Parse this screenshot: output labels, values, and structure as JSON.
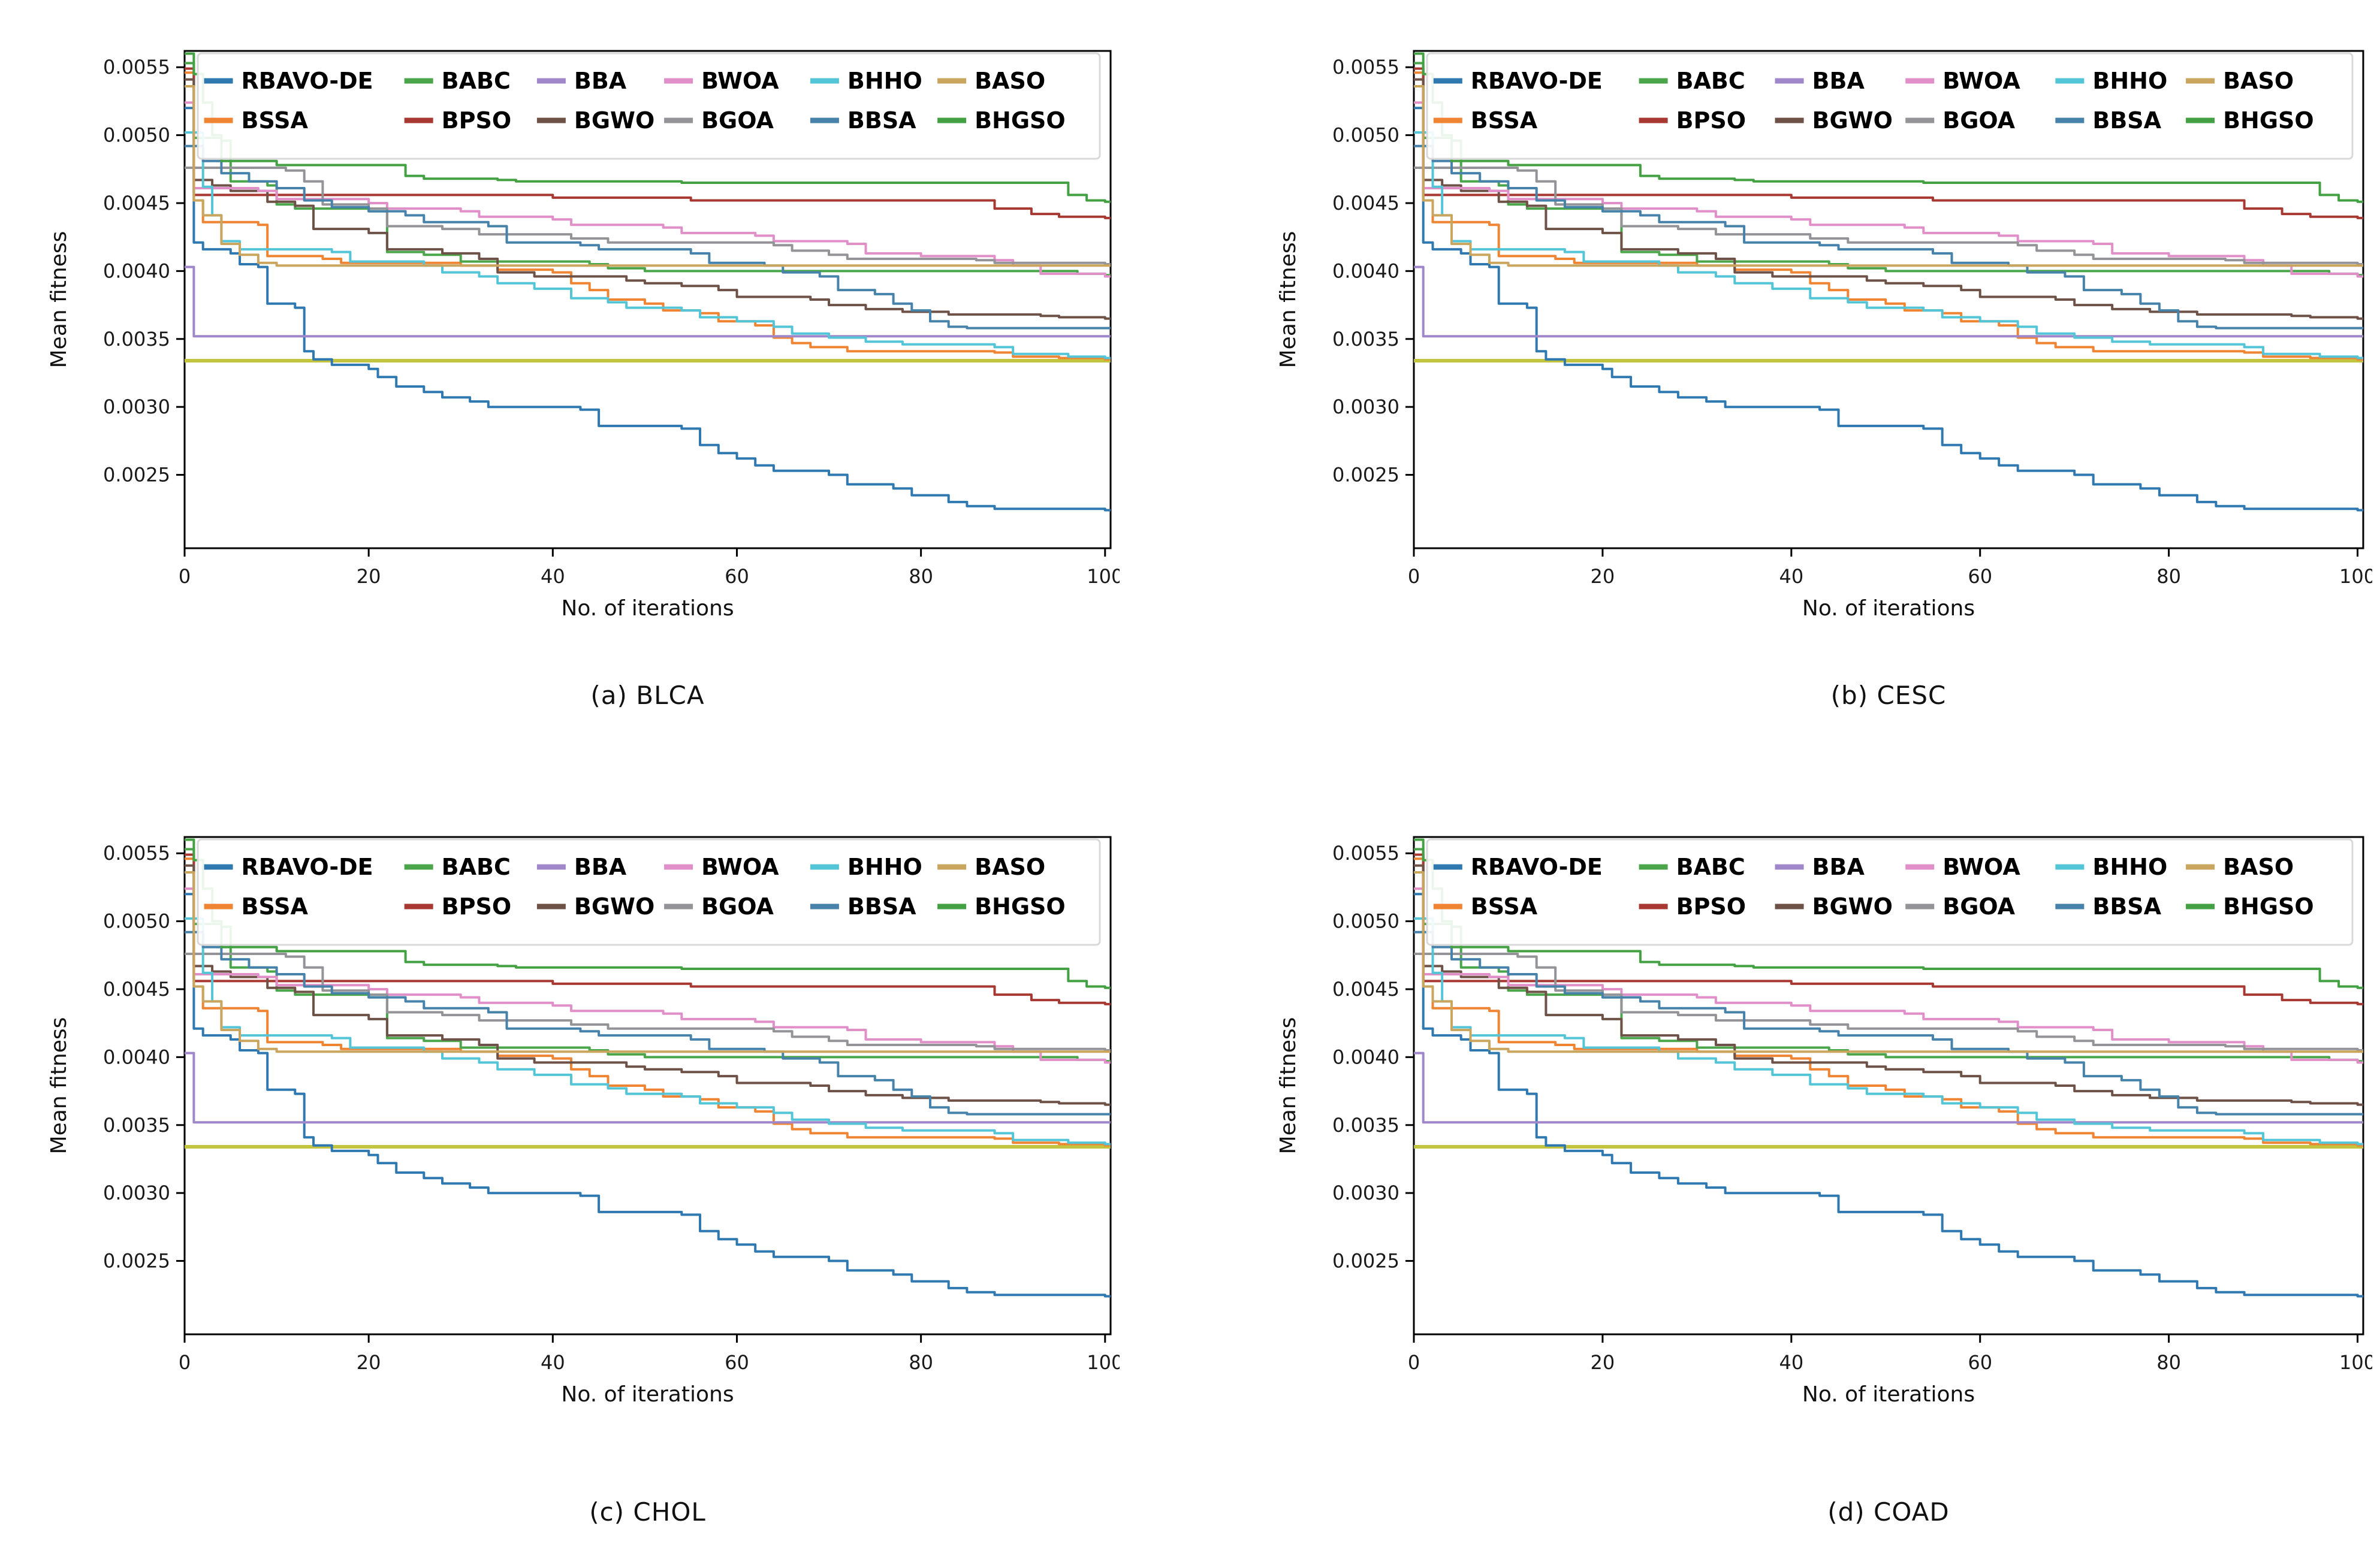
{
  "figure": {
    "background": "#ffffff",
    "panels": [
      {
        "id": "a",
        "caption": "(a) BLCA"
      },
      {
        "id": "b",
        "caption": "(b) CESC"
      },
      {
        "id": "c",
        "caption": "(c) CHOL"
      },
      {
        "id": "d",
        "caption": "(d) COAD"
      }
    ]
  },
  "chart_data": {
    "type": "line",
    "title": "",
    "xlabel": "No. of iterations",
    "ylabel": "Mean fitness",
    "xlim": [
      0,
      100.6
    ],
    "ylim": [
      0.00196,
      0.00562
    ],
    "x_ticks": [
      0,
      20,
      40,
      60,
      80,
      100
    ],
    "y_ticks": [
      0.0025,
      0.003,
      0.0035,
      0.004,
      0.0045,
      0.005,
      0.0055
    ],
    "grid": false,
    "legend_position": "upper center inside plot, 6 columns x 2 rows",
    "legend_columns": [
      [
        "RBAVO-DE",
        "BSSA"
      ],
      [
        "BABC",
        "BPSO"
      ],
      [
        "BBA",
        "BGWO"
      ],
      [
        "BWOA",
        "BGOA"
      ],
      [
        "BHHO",
        "BBSA"
      ],
      [
        "BASO",
        "BHGSO"
      ]
    ],
    "panels": [
      "(a) BLCA",
      "(b) CESC",
      "(c) CHOL",
      "(d) COAD"
    ],
    "note": "All four panels show visually identical convergence curves of the same 12 algorithms; an unlabeled olive horizontal reference line sits at y=0.00334.",
    "reference_line": {
      "name": "optimum-reference",
      "value": 0.00334,
      "color": "#c3c43e"
    },
    "series": [
      {
        "name": "RBAVO-DE",
        "color": "#2f78b0",
        "points": [
          [
            0,
            0.0052
          ],
          [
            1,
            0.00421
          ],
          [
            2,
            0.00416
          ],
          [
            5,
            0.00413
          ],
          [
            6,
            0.00405
          ],
          [
            8,
            0.00403
          ],
          [
            9,
            0.00376
          ],
          [
            12,
            0.00373
          ],
          [
            13,
            0.00341
          ],
          [
            14,
            0.00335
          ],
          [
            16,
            0.00331
          ],
          [
            20,
            0.00328
          ],
          [
            21,
            0.00322
          ],
          [
            23,
            0.00315
          ],
          [
            26,
            0.00311
          ],
          [
            28,
            0.00307
          ],
          [
            31,
            0.00304
          ],
          [
            33,
            0.003
          ],
          [
            43,
            0.00298
          ],
          [
            45,
            0.00286
          ],
          [
            54,
            0.00284
          ],
          [
            56,
            0.00272
          ],
          [
            58,
            0.00266
          ],
          [
            60,
            0.00262
          ],
          [
            62,
            0.00257
          ],
          [
            64,
            0.00253
          ],
          [
            70,
            0.0025
          ],
          [
            72,
            0.00243
          ],
          [
            77,
            0.0024
          ],
          [
            79,
            0.00235
          ],
          [
            83,
            0.0023
          ],
          [
            85,
            0.00227
          ],
          [
            88,
            0.00225
          ],
          [
            100,
            0.00224
          ]
        ]
      },
      {
        "name": "BSSA",
        "color": "#ef8433",
        "points": [
          [
            0,
            0.00546
          ],
          [
            1,
            0.00452
          ],
          [
            2,
            0.00436
          ],
          [
            8,
            0.00434
          ],
          [
            9,
            0.00411
          ],
          [
            15,
            0.00409
          ],
          [
            17,
            0.00406
          ],
          [
            30,
            0.00404
          ],
          [
            34,
            0.00401
          ],
          [
            40,
            0.00399
          ],
          [
            42,
            0.00391
          ],
          [
            44,
            0.00386
          ],
          [
            46,
            0.00379
          ],
          [
            50,
            0.00376
          ],
          [
            52,
            0.00371
          ],
          [
            56,
            0.00369
          ],
          [
            58,
            0.00363
          ],
          [
            62,
            0.0036
          ],
          [
            64,
            0.00351
          ],
          [
            66,
            0.00347
          ],
          [
            68,
            0.00344
          ],
          [
            72,
            0.00341
          ],
          [
            88,
            0.0034
          ],
          [
            90,
            0.00337
          ],
          [
            95,
            0.00336
          ],
          [
            100,
            0.00335
          ]
        ]
      },
      {
        "name": "BABC",
        "color": "#4ba64b",
        "points": [
          [
            0,
            0.00553
          ],
          [
            1,
            0.00498
          ],
          [
            4,
            0.00496
          ],
          [
            5,
            0.00466
          ],
          [
            9,
            0.00463
          ],
          [
            10,
            0.00449
          ],
          [
            12,
            0.00446
          ],
          [
            20,
            0.00444
          ],
          [
            22,
            0.00414
          ],
          [
            26,
            0.00412
          ],
          [
            30,
            0.00407
          ],
          [
            44,
            0.00405
          ],
          [
            46,
            0.00402
          ],
          [
            50,
            0.004
          ],
          [
            96,
            0.004
          ],
          [
            97,
            0.00398
          ],
          [
            100,
            0.00397
          ]
        ]
      },
      {
        "name": "BPSO",
        "color": "#a83832",
        "points": [
          [
            0,
            0.00549
          ],
          [
            1,
            0.00456
          ],
          [
            40,
            0.00454
          ],
          [
            55,
            0.00452
          ],
          [
            86,
            0.00452
          ],
          [
            88,
            0.00446
          ],
          [
            92,
            0.00442
          ],
          [
            95,
            0.0044
          ],
          [
            100,
            0.00439
          ]
        ]
      },
      {
        "name": "BBA",
        "color": "#a087c9",
        "points": [
          [
            0,
            0.00403
          ],
          [
            1,
            0.00352
          ],
          [
            100,
            0.00352
          ]
        ]
      },
      {
        "name": "BGWO",
        "color": "#6f5247",
        "points": [
          [
            0,
            0.00541
          ],
          [
            1,
            0.00467
          ],
          [
            3,
            0.00463
          ],
          [
            5,
            0.00459
          ],
          [
            9,
            0.00451
          ],
          [
            12,
            0.00448
          ],
          [
            14,
            0.00431
          ],
          [
            20,
            0.00428
          ],
          [
            22,
            0.00416
          ],
          [
            28,
            0.00413
          ],
          [
            32,
            0.00409
          ],
          [
            34,
            0.00399
          ],
          [
            38,
            0.00396
          ],
          [
            48,
            0.00393
          ],
          [
            50,
            0.00391
          ],
          [
            54,
            0.00389
          ],
          [
            58,
            0.00386
          ],
          [
            60,
            0.00381
          ],
          [
            68,
            0.00379
          ],
          [
            70,
            0.00375
          ],
          [
            74,
            0.00372
          ],
          [
            78,
            0.0037
          ],
          [
            83,
            0.00368
          ],
          [
            93,
            0.00367
          ],
          [
            95,
            0.00366
          ],
          [
            100,
            0.00365
          ]
        ]
      },
      {
        "name": "BWOA",
        "color": "#e08fc9",
        "points": [
          [
            0,
            0.00524
          ],
          [
            1,
            0.00461
          ],
          [
            8,
            0.00459
          ],
          [
            10,
            0.00453
          ],
          [
            20,
            0.0045
          ],
          [
            22,
            0.00446
          ],
          [
            30,
            0.00444
          ],
          [
            32,
            0.0044
          ],
          [
            40,
            0.00438
          ],
          [
            42,
            0.00434
          ],
          [
            52,
            0.00432
          ],
          [
            54,
            0.00428
          ],
          [
            62,
            0.00426
          ],
          [
            64,
            0.00422
          ],
          [
            72,
            0.0042
          ],
          [
            74,
            0.00413
          ],
          [
            80,
            0.00411
          ],
          [
            88,
            0.00408
          ],
          [
            90,
            0.00404
          ],
          [
            93,
            0.00398
          ],
          [
            100,
            0.00396
          ]
        ]
      },
      {
        "name": "BGOA",
        "color": "#939398",
        "points": [
          [
            0,
            0.00476
          ],
          [
            11,
            0.00474
          ],
          [
            13,
            0.00466
          ],
          [
            15,
            0.00449
          ],
          [
            20,
            0.00446
          ],
          [
            22,
            0.00433
          ],
          [
            28,
            0.00431
          ],
          [
            32,
            0.00427
          ],
          [
            42,
            0.00424
          ],
          [
            46,
            0.00421
          ],
          [
            64,
            0.00419
          ],
          [
            66,
            0.00415
          ],
          [
            70,
            0.00412
          ],
          [
            72,
            0.00409
          ],
          [
            86,
            0.00408
          ],
          [
            88,
            0.00406
          ],
          [
            100,
            0.00405
          ]
        ]
      },
      {
        "name": "BHHO",
        "color": "#53c5d6",
        "points": [
          [
            0,
            0.00502
          ],
          [
            2,
            0.00462
          ],
          [
            3,
            0.00441
          ],
          [
            4,
            0.00422
          ],
          [
            6,
            0.00416
          ],
          [
            16,
            0.00414
          ],
          [
            18,
            0.00407
          ],
          [
            26,
            0.00404
          ],
          [
            28,
            0.00399
          ],
          [
            32,
            0.00396
          ],
          [
            34,
            0.00391
          ],
          [
            38,
            0.00387
          ],
          [
            42,
            0.0038
          ],
          [
            46,
            0.00377
          ],
          [
            48,
            0.00373
          ],
          [
            54,
            0.00371
          ],
          [
            56,
            0.00366
          ],
          [
            60,
            0.00363
          ],
          [
            64,
            0.00359
          ],
          [
            66,
            0.00354
          ],
          [
            70,
            0.00351
          ],
          [
            74,
            0.00348
          ],
          [
            78,
            0.00346
          ],
          [
            88,
            0.00344
          ],
          [
            90,
            0.00339
          ],
          [
            96,
            0.00337
          ],
          [
            100,
            0.00336
          ]
        ]
      },
      {
        "name": "BBSA",
        "color": "#4682a9",
        "points": [
          [
            0,
            0.00492
          ],
          [
            2,
            0.00481
          ],
          [
            4,
            0.00472
          ],
          [
            7,
            0.00466
          ],
          [
            10,
            0.00461
          ],
          [
            13,
            0.00452
          ],
          [
            16,
            0.00447
          ],
          [
            20,
            0.00444
          ],
          [
            24,
            0.00441
          ],
          [
            26,
            0.00436
          ],
          [
            33,
            0.00433
          ],
          [
            35,
            0.00421
          ],
          [
            43,
            0.00419
          ],
          [
            45,
            0.00416
          ],
          [
            55,
            0.00413
          ],
          [
            57,
            0.00406
          ],
          [
            63,
            0.00404
          ],
          [
            65,
            0.00399
          ],
          [
            69,
            0.00396
          ],
          [
            71,
            0.00386
          ],
          [
            75,
            0.00383
          ],
          [
            77,
            0.00376
          ],
          [
            79,
            0.00371
          ],
          [
            81,
            0.00363
          ],
          [
            83,
            0.00359
          ],
          [
            85,
            0.00358
          ],
          [
            100,
            0.00358
          ]
        ]
      },
      {
        "name": "BASO",
        "color": "#c9a55e",
        "points": [
          [
            0,
            0.00536
          ],
          [
            1,
            0.00452
          ],
          [
            2,
            0.00441
          ],
          [
            4,
            0.0042
          ],
          [
            6,
            0.00412
          ],
          [
            8,
            0.00406
          ],
          [
            10,
            0.00404
          ],
          [
            100,
            0.00404
          ]
        ]
      },
      {
        "name": "BHGSO",
        "color": "#43a143",
        "points": [
          [
            0,
            0.0056
          ],
          [
            1,
            0.00545
          ],
          [
            2,
            0.00524
          ],
          [
            3,
            0.005
          ],
          [
            4,
            0.00481
          ],
          [
            10,
            0.00478
          ],
          [
            24,
            0.0047
          ],
          [
            26,
            0.00468
          ],
          [
            34,
            0.00467
          ],
          [
            36,
            0.00466
          ],
          [
            54,
            0.00465
          ],
          [
            95,
            0.00465
          ],
          [
            96,
            0.00456
          ],
          [
            98,
            0.00452
          ],
          [
            100,
            0.00451
          ]
        ]
      }
    ]
  }
}
